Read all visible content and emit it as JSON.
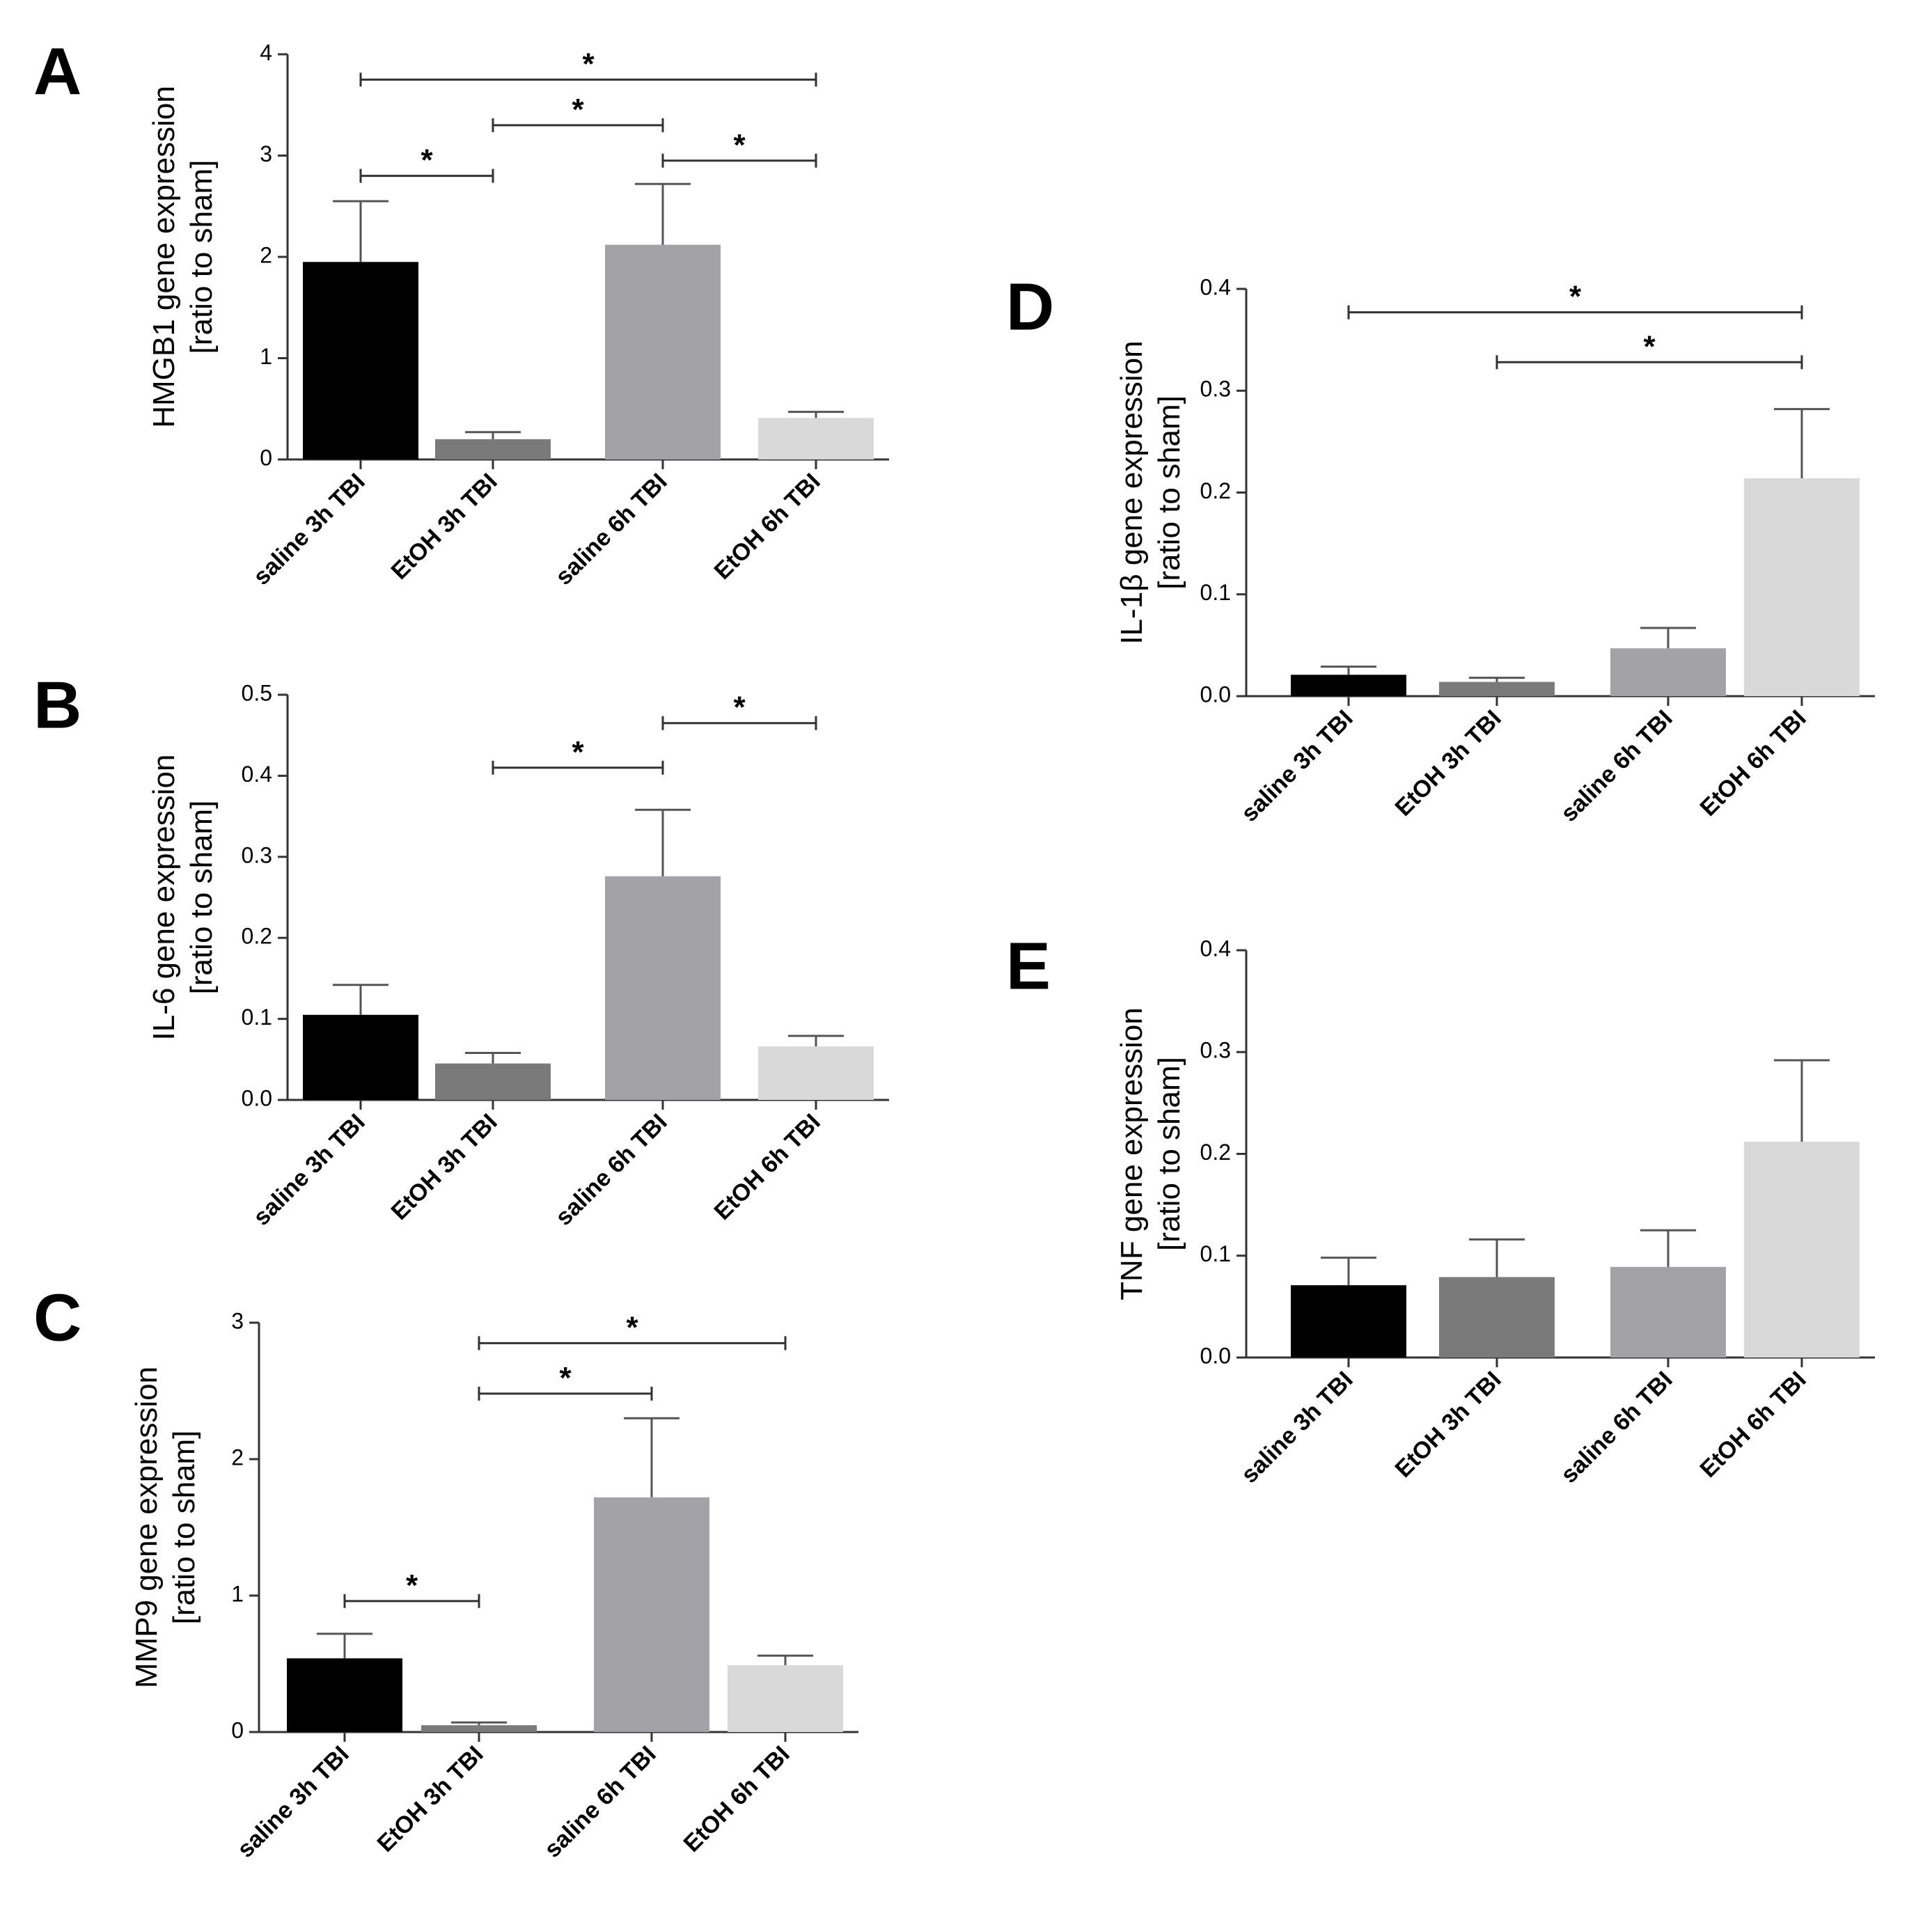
{
  "chart_data": [
    {
      "panel": "A",
      "type": "bar",
      "categories": [
        "saline 3h TBI",
        "EtOH 3h TBI",
        "saline 6h TBI",
        "EtOH 6h TBI"
      ],
      "values": [
        1.95,
        0.2,
        2.12,
        0.41
      ],
      "errors": [
        0.6,
        0.07,
        0.6,
        0.06
      ],
      "colors": [
        "#000000",
        "#7a7a7a",
        "#a2a2a7",
        "#d9d9d9"
      ],
      "ylabel_line1": "HMGB1 gene expression",
      "ylabel_line2": "[ratio to sham]",
      "ylim": [
        0,
        4
      ],
      "yticks": [
        0,
        1,
        2,
        3,
        4
      ],
      "tick_labels": [
        "0",
        "1",
        "2",
        "3",
        "4"
      ],
      "significance": [
        {
          "from": 0,
          "to": 3,
          "level": 3.75,
          "label": "*"
        },
        {
          "from": 1,
          "to": 2,
          "level": 3.3,
          "label": "*"
        },
        {
          "from": 0,
          "to": 1,
          "level": 2.8,
          "label": "*"
        },
        {
          "from": 2,
          "to": 3,
          "level": 2.95,
          "label": "*"
        }
      ]
    },
    {
      "panel": "B",
      "type": "bar",
      "categories": [
        "saline 3h TBI",
        "EtOH 3h TBI",
        "saline 6h TBI",
        "EtOH 6h TBI"
      ],
      "values": [
        0.105,
        0.045,
        0.276,
        0.066
      ],
      "errors": [
        0.037,
        0.013,
        0.082,
        0.013
      ],
      "colors": [
        "#000000",
        "#7a7a7a",
        "#a2a2a7",
        "#d9d9d9"
      ],
      "ylabel_line1": "IL-6 gene expression",
      "ylabel_line2": "[ratio to sham]",
      "ylim": [
        0,
        0.5
      ],
      "yticks": [
        0,
        0.1,
        0.2,
        0.3,
        0.4,
        0.5
      ],
      "tick_labels": [
        "0.0",
        "0.1",
        "0.2",
        "0.3",
        "0.4",
        "0.5"
      ],
      "significance": [
        {
          "from": 1,
          "to": 2,
          "level": 0.41,
          "label": "*"
        },
        {
          "from": 2,
          "to": 3,
          "level": 0.465,
          "label": "*"
        }
      ]
    },
    {
      "panel": "C",
      "type": "bar",
      "categories": [
        "saline 3h TBI",
        "EtOH 3h TBI",
        "saline 6h TBI",
        "EtOH 6h TBI"
      ],
      "values": [
        0.54,
        0.05,
        1.72,
        0.49
      ],
      "errors": [
        0.18,
        0.02,
        0.58,
        0.07
      ],
      "colors": [
        "#000000",
        "#7a7a7a",
        "#a2a2a7",
        "#d9d9d9"
      ],
      "ylabel_line1": "MMP9 gene expression",
      "ylabel_line2": "[ratio to sham]",
      "ylim": [
        0,
        3
      ],
      "yticks": [
        0,
        1,
        2,
        3
      ],
      "tick_labels": [
        "0",
        "1",
        "2",
        "3"
      ],
      "significance": [
        {
          "from": 1,
          "to": 3,
          "level": 2.85,
          "label": "*"
        },
        {
          "from": 1,
          "to": 2,
          "level": 2.48,
          "label": "*"
        },
        {
          "from": 0,
          "to": 1,
          "level": 0.96,
          "label": "*"
        }
      ]
    },
    {
      "panel": "D",
      "type": "bar",
      "categories": [
        "saline 3h TBI",
        "EtOH 3h TBI",
        "saline 6h TBI",
        "EtOH 6h TBI"
      ],
      "values": [
        0.021,
        0.014,
        0.047,
        0.214
      ],
      "errors": [
        0.008,
        0.004,
        0.02,
        0.068
      ],
      "colors": [
        "#000000",
        "#7a7a7a",
        "#a2a2a7",
        "#d9d9d9"
      ],
      "ylabel_line1": "IL-1β gene expression",
      "ylabel_line2": "[ratio to sham]",
      "ylim": [
        0,
        0.4
      ],
      "yticks": [
        0,
        0.1,
        0.2,
        0.3,
        0.4
      ],
      "tick_labels": [
        "0.0",
        "0.1",
        "0.2",
        "0.3",
        "0.4"
      ],
      "significance": [
        {
          "from": 0,
          "to": 3,
          "level": 0.377,
          "label": "*"
        },
        {
          "from": 1,
          "to": 3,
          "level": 0.328,
          "label": "*"
        }
      ]
    },
    {
      "panel": "E",
      "type": "bar",
      "categories": [
        "saline 3h TBI",
        "EtOH 3h TBI",
        "saline 6h TBI",
        "EtOH 6h TBI"
      ],
      "values": [
        0.071,
        0.079,
        0.089,
        0.212
      ],
      "errors": [
        0.027,
        0.037,
        0.036,
        0.08
      ],
      "colors": [
        "#000000",
        "#7a7a7a",
        "#a2a2a7",
        "#d9d9d9"
      ],
      "ylabel_line1": "TNF gene expression",
      "ylabel_line2": "[ratio to sham]",
      "ylim": [
        0,
        0.4
      ],
      "yticks": [
        0,
        0.1,
        0.2,
        0.3,
        0.4
      ],
      "tick_labels": [
        "0.0",
        "0.1",
        "0.2",
        "0.3",
        "0.4"
      ],
      "significance": []
    }
  ]
}
